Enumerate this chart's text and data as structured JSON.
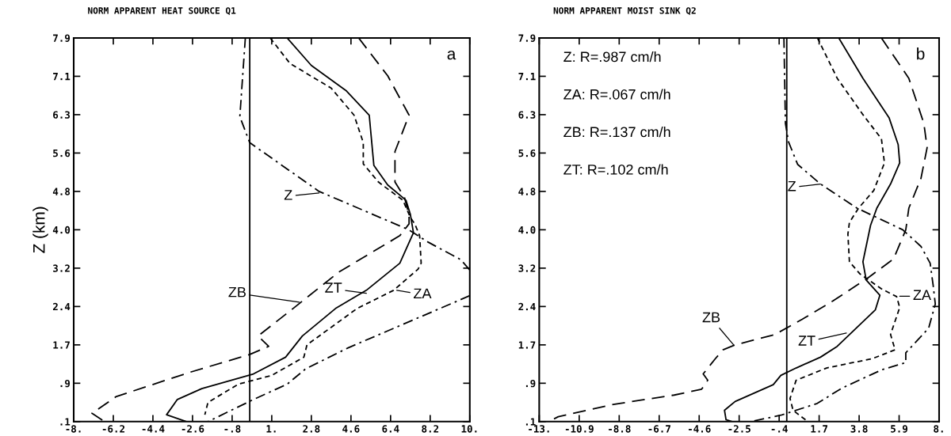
{
  "chart_data": [
    {
      "type": "line",
      "title": "NORM APPARENT HEAT SOURCE Q1",
      "ylabel": "Z (km)",
      "xlim": [
        -8,
        10
      ],
      "ylim": [
        0.1,
        7.9
      ],
      "xticks": [
        {
          "value": -8,
          "label": "-8."
        },
        {
          "value": -6.2,
          "label": "-6.2"
        },
        {
          "value": -4.4,
          "label": "-4.4"
        },
        {
          "value": -2.6,
          "label": "-2.6"
        },
        {
          "value": -0.8,
          "label": "-.8"
        },
        {
          "value": 1,
          "label": "1."
        },
        {
          "value": 2.8,
          "label": "2.8"
        },
        {
          "value": 4.6,
          "label": "4.6"
        },
        {
          "value": 6.4,
          "label": "6.4"
        },
        {
          "value": 8.2,
          "label": "8.2"
        },
        {
          "value": 10,
          "label": "10."
        }
      ],
      "yticks": [
        {
          "value": 0.1,
          "label": ".1"
        },
        {
          "value": 0.88,
          "label": ".9"
        },
        {
          "value": 1.66,
          "label": "1.7"
        },
        {
          "value": 2.44,
          "label": "2.4"
        },
        {
          "value": 3.22,
          "label": "3.2"
        },
        {
          "value": 4.0,
          "label": "4.0"
        },
        {
          "value": 4.78,
          "label": "4.8"
        },
        {
          "value": 5.56,
          "label": "5.6"
        },
        {
          "value": 6.34,
          "label": "6.3"
        },
        {
          "value": 7.12,
          "label": "7.1"
        },
        {
          "value": 7.9,
          "label": "7.9"
        }
      ],
      "grid": false,
      "marker": "none",
      "ref_lines": [
        {
          "axis": "x",
          "value": 0,
          "label": null,
          "color": "#000000",
          "line_style": "solid"
        }
      ],
      "series": [
        {
          "color": "#000000",
          "line_style": "dashdot",
          "x": [
            -0.2,
            -0.45,
            0.0,
            3.15,
            7.23,
            8.1,
            9.6,
            10.0
          ],
          "values": [
            7.9,
            6.3,
            5.77,
            4.78,
            4.0,
            3.75,
            3.39,
            3.18
          ]
        },
        {
          "color": "#000000",
          "line_style": "dashdot",
          "x": [
            10.0,
            4.47,
            2.53,
            1.7,
            0.17,
            -1.9
          ],
          "values": [
            2.66,
            1.6,
            1.17,
            0.86,
            0.55,
            0.1
          ]
        },
        {
          "color": "#000000",
          "line_style": "dotted",
          "x": [
            0.93,
            1.83,
            3.7,
            4.74,
            5.16,
            5.16,
            5.85,
            6.96,
            7.3,
            7.5,
            7.72,
            7.79,
            7.65,
            6.54,
            4.88,
            2.6,
            2.46,
            1.0,
            -0.52,
            -1.9,
            -2.04
          ],
          "values": [
            7.9,
            7.38,
            6.88,
            6.33,
            5.77,
            5.34,
            4.97,
            4.6,
            4.25,
            4.12,
            3.88,
            3.32,
            3.2,
            2.77,
            2.4,
            1.66,
            1.41,
            1.04,
            0.86,
            0.49,
            0.24
          ]
        },
        {
          "color": "#000000",
          "line_style": "dashed",
          "x": [
            4.95,
            6.27,
            7.24,
            6.6,
            6.6,
            7.03,
            7.24,
            7.24,
            6.82,
            4.05,
            1.97,
            0.38,
            0.86,
            0.03,
            -2.74,
            -6.06,
            -7.17,
            -6.6
          ],
          "values": [
            7.9,
            7.13,
            6.33,
            5.59,
            4.97,
            4.66,
            4.3,
            4.12,
            3.88,
            3.14,
            2.4,
            1.84,
            1.63,
            1.47,
            1.1,
            0.61,
            0.27,
            0.1
          ]
        },
        {
          "color": "#000000",
          "line_style": "solid",
          "x": [
            1.7,
            2.8,
            4.4,
            5.43,
            5.64,
            6.27,
            7.1,
            7.3,
            7.44,
            6.82,
            5.3,
            3.9,
            2.39,
            1.63,
            0.17,
            -2.18,
            -3.29,
            -3.78,
            -2.88
          ],
          "values": [
            7.9,
            7.34,
            6.82,
            6.33,
            5.31,
            4.91,
            4.6,
            4.31,
            3.94,
            3.32,
            2.77,
            2.4,
            1.84,
            1.41,
            1.07,
            0.77,
            0.55,
            0.24,
            0.1
          ]
        }
      ],
      "annotations": [
        "a",
        {
          "text": "Z",
          "x": 3.15,
          "y": 4.75
        },
        {
          "text": "ZB",
          "x": 2.25,
          "y": 2.53
        },
        {
          "text": "ZT",
          "x": 5.3,
          "y": 2.71
        },
        {
          "text": "ZA",
          "x": 6.68,
          "y": 2.77
        }
      ]
    },
    {
      "type": "line",
      "title": "NORM APPARENT MOIST SINK Q2",
      "xlim": [
        -13,
        8
      ],
      "ylim": [
        0.1,
        7.9
      ],
      "xticks": [
        {
          "value": -13,
          "label": "-13."
        },
        {
          "value": -10.9,
          "label": "-10.9"
        },
        {
          "value": -8.8,
          "label": "-8.8"
        },
        {
          "value": -6.7,
          "label": "-6.7"
        },
        {
          "value": -4.6,
          "label": "-4.6"
        },
        {
          "value": -2.5,
          "label": "-2.5"
        },
        {
          "value": -0.4,
          "label": "-.4"
        },
        {
          "value": 1.7,
          "label": "1.7"
        },
        {
          "value": 3.8,
          "label": "3.8"
        },
        {
          "value": 5.9,
          "label": "5.9"
        },
        {
          "value": 8,
          "label": "8."
        }
      ],
      "yticks": [
        {
          "value": 0.1,
          "label": ".1"
        },
        {
          "value": 0.88,
          "label": ".9"
        },
        {
          "value": 1.66,
          "label": "1.7"
        },
        {
          "value": 2.44,
          "label": "2.4"
        },
        {
          "value": 3.22,
          "label": "3.2"
        },
        {
          "value": 4.0,
          "label": "4.0"
        },
        {
          "value": 4.78,
          "label": "4.8"
        },
        {
          "value": 5.56,
          "label": "5.6"
        },
        {
          "value": 6.34,
          "label": "6.3"
        },
        {
          "value": 7.12,
          "label": "7.1"
        },
        {
          "value": 7.9,
          "label": "7.9"
        }
      ],
      "grid": false,
      "marker": "none",
      "ref_lines": [
        {
          "axis": "x",
          "value": 0,
          "label": null,
          "color": "#000000",
          "line_style": "solid"
        }
      ],
      "series": [
        {
          "color": "#000000",
          "line_style": "dashdot",
          "x": [
            -0.15,
            -0.07,
            0.09,
            0.57,
            1.77,
            3.69,
            6.09,
            7.05,
            7.53,
            7.69,
            7.8,
            7.45,
            6.25,
            6.25,
            4.97,
            2.89,
            1.6,
            -0.31,
            -1.91
          ],
          "values": [
            7.9,
            6.16,
            5.79,
            5.33,
            4.93,
            4.44,
            4.0,
            3.66,
            3.32,
            2.86,
            2.49,
            2.0,
            1.5,
            1.3,
            1.15,
            0.78,
            0.47,
            0.23,
            0.1
          ]
        },
        {
          "color": "#000000",
          "line_style": "dotted",
          "x": [
            1.61,
            2.65,
            4.0,
            4.97,
            5.13,
            4.57,
            3.77,
            3.29,
            3.21,
            3.29,
            3.85,
            4.97,
            5.77,
            5.93,
            5.45,
            5.69,
            4.49,
            2.09,
            0.49,
            0.17,
            0.33,
            0.97,
            1.1
          ],
          "values": [
            7.9,
            7.08,
            6.34,
            5.85,
            5.36,
            4.8,
            4.44,
            4.15,
            3.91,
            3.35,
            3.1,
            2.8,
            2.64,
            2.42,
            1.87,
            1.56,
            1.38,
            1.19,
            0.94,
            0.57,
            0.33,
            0.14,
            0.1
          ]
        },
        {
          "color": "#000000",
          "line_style": "dashed",
          "x": [
            4.97,
            6.41,
            7.2,
            7.37,
            7.05,
            6.41,
            6.25,
            5.61,
            4.33,
            2.41,
            0.81,
            -0.63,
            -2.71,
            -3.35,
            -3.75,
            -4.39,
            -4.15,
            -4.47,
            -5.91,
            -9.11,
            -12.0,
            -12.5
          ],
          "values": [
            7.9,
            7.08,
            6.16,
            5.67,
            5.05,
            4.44,
            4.0,
            3.41,
            3.04,
            2.55,
            2.18,
            1.87,
            1.66,
            1.56,
            1.38,
            1.07,
            0.94,
            0.76,
            0.64,
            0.45,
            0.2,
            0.1
          ]
        },
        {
          "color": "#000000",
          "line_style": "solid",
          "x": [
            2.73,
            4.0,
            5.37,
            5.85,
            5.93,
            5.45,
            4.73,
            4.4,
            4.0,
            4.17,
            4.89,
            4.65,
            2.65,
            1.77,
            0.49,
            -0.31,
            -0.71,
            -2.71,
            -3.27,
            -3.19,
            -2.87
          ],
          "values": [
            7.9,
            7.08,
            6.28,
            5.73,
            5.36,
            4.93,
            4.44,
            4.09,
            3.35,
            2.98,
            2.67,
            2.37,
            1.63,
            1.41,
            1.19,
            1.04,
            0.85,
            0.51,
            0.33,
            0.14,
            0.1
          ]
        }
      ],
      "annotations": [
        "Z: R=.987 cm/h",
        "ZA: R=.067 cm/h",
        "ZB: R=.137 cm/h",
        "ZT: R=.102 cm/h",
        "b",
        {
          "text": "Z",
          "x": 1.77,
          "y": 4.93
        },
        {
          "text": "ZB",
          "x": -2.79,
          "y": 1.66
        },
        {
          "text": "ZT",
          "x": 3.13,
          "y": 1.9
        },
        {
          "text": "ZA",
          "x": 5.93,
          "y": 2.65
        }
      ]
    }
  ]
}
